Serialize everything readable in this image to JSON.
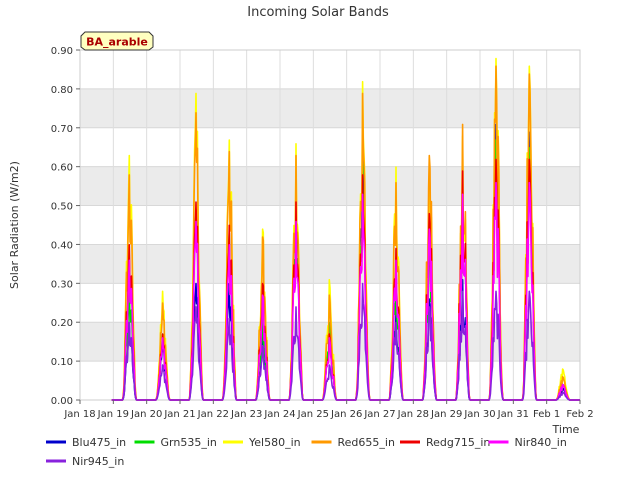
{
  "chart_data": {
    "type": "line",
    "title": "Incoming Solar Bands",
    "xlabel": "Time",
    "ylabel": "Solar Radiation (W/m2)",
    "site_label": "BA_arable",
    "ylim": [
      0,
      0.9
    ],
    "y_ticks": [
      "0.00",
      "0.10",
      "0.20",
      "0.30",
      "0.40",
      "0.50",
      "0.60",
      "0.70",
      "0.80",
      "0.90"
    ],
    "x_ticks": [
      "Jan 18",
      "Jan 19",
      "Jan 20",
      "Jan 21",
      "Jan 22",
      "Jan 23",
      "Jan 24",
      "Jan 25",
      "Jan 26",
      "Jan 27",
      "Jan 28",
      "Jan 29",
      "Jan 30",
      "Jan 31",
      "Feb 1",
      "Feb 2"
    ],
    "xlim_days": [
      0,
      15
    ],
    "grid": true,
    "legend_position": "bottom",
    "days": [
      "Jan 19",
      "Jan 20",
      "Jan 21",
      "Jan 22",
      "Jan 23",
      "Jan 24",
      "Jan 25",
      "Jan 26",
      "Jan 27",
      "Jan 28",
      "Jan 29",
      "Jan 30",
      "Jan 31",
      "Feb 1"
    ],
    "series": [
      {
        "name": "Blu475_in",
        "color": "#0000cc",
        "daily_peak": [
          0.2,
          0.15,
          0.3,
          0.3,
          0.16,
          0.53,
          0.17,
          0.68,
          0.22,
          0.26,
          0.31,
          0.71,
          0.69,
          0.03
        ]
      },
      {
        "name": "Grn535_in",
        "color": "#00dd00",
        "daily_peak": [
          0.29,
          0.17,
          0.49,
          0.43,
          0.21,
          0.53,
          0.2,
          0.61,
          0.31,
          0.4,
          0.53,
          0.67,
          0.65,
          0.04
        ]
      },
      {
        "name": "Yel580_in",
        "color": "#ffff00",
        "daily_peak": [
          0.63,
          0.28,
          0.79,
          0.67,
          0.44,
          0.66,
          0.31,
          0.82,
          0.6,
          0.58,
          0.68,
          0.88,
          0.86,
          0.08
        ]
      },
      {
        "name": "Red655_in",
        "color": "#ff9900",
        "daily_peak": [
          0.58,
          0.25,
          0.74,
          0.64,
          0.42,
          0.63,
          0.27,
          0.79,
          0.56,
          0.63,
          0.71,
          0.86,
          0.84,
          0.06
        ]
      },
      {
        "name": "Redg715_in",
        "color": "#ee0000",
        "daily_peak": [
          0.4,
          0.17,
          0.51,
          0.45,
          0.3,
          0.51,
          0.17,
          0.58,
          0.39,
          0.48,
          0.59,
          0.62,
          0.62,
          0.04
        ]
      },
      {
        "name": "Nir840_in",
        "color": "#ff00ff",
        "daily_peak": [
          0.36,
          0.16,
          0.46,
          0.4,
          0.27,
          0.46,
          0.16,
          0.53,
          0.36,
          0.44,
          0.53,
          0.56,
          0.56,
          0.04
        ]
      },
      {
        "name": "Nir945_in",
        "color": "#8822dd",
        "daily_peak": [
          0.2,
          0.09,
          0.24,
          0.21,
          0.14,
          0.24,
          0.09,
          0.3,
          0.2,
          0.24,
          0.28,
          0.28,
          0.28,
          0.02
        ]
      }
    ]
  }
}
